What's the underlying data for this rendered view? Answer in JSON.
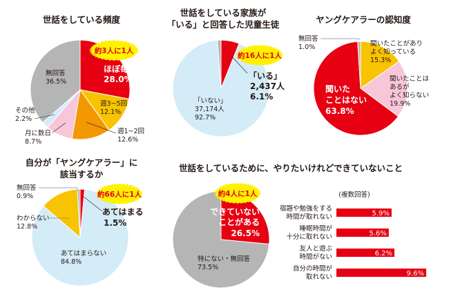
{
  "colors": {
    "red": "#e60012",
    "yellow": "#f8c300",
    "orange": "#f39800",
    "pink": "#f7c6d9",
    "lightblue": "#d4ebf8",
    "gray": "#b5b5b5",
    "callout": "#fff100"
  },
  "chart_data": [
    {
      "id": "frequency",
      "type": "pie",
      "title": "世話をしている頻度",
      "callout": "約3人に1人",
      "start": "top",
      "direction": "clockwise",
      "slices": [
        {
          "label": "ほぼ毎日",
          "value": 28.0,
          "display": "28.0%",
          "color": "red"
        },
        {
          "label": "週3~5回",
          "value": 12.1,
          "display": "12.1%",
          "color": "yellow"
        },
        {
          "label": "週1~2回",
          "value": 12.6,
          "display": "12.6%",
          "color": "orange"
        },
        {
          "label": "月に数日",
          "value": 8.7,
          "display": "8.7%",
          "color": "pink"
        },
        {
          "label": "その他",
          "value": 2.2,
          "display": "2.2%",
          "color": "lightblue"
        },
        {
          "label": "無回答",
          "value": 36.5,
          "display": "36.5%",
          "color": "gray"
        }
      ]
    },
    {
      "id": "has-family",
      "type": "pie",
      "title": [
        "世話をしている家族が",
        "「いる」と回答した児童生徒"
      ],
      "callout": "約16人に1人",
      "start": "top",
      "direction": "clockwise",
      "slices": [
        {
          "label": "「いる」",
          "count": "2,437人",
          "value": 6.1,
          "display": "6.1%",
          "color": "red"
        },
        {
          "label": "「いない」",
          "count": "37,174人",
          "value": 92.7,
          "display": "92.7%",
          "color": "lightblue"
        },
        {
          "label": "",
          "value": 1.2,
          "display": "",
          "color": "gray"
        }
      ]
    },
    {
      "id": "awareness",
      "type": "pie",
      "title": "ヤングケアラーの認知度",
      "start": "top",
      "direction": "clockwise",
      "slices": [
        {
          "label": "聞いたことがあり よく知っている",
          "lines": [
            "聞いたことがあり",
            "よく知っている"
          ],
          "value": 15.3,
          "display": "15.3%",
          "color": "yellow"
        },
        {
          "label": "聞いたことは あるが よく知らない",
          "lines": [
            "聞いたことは",
            "あるが",
            "よく知らない"
          ],
          "value": 19.9,
          "display": "19.9%",
          "color": "pink"
        },
        {
          "label": "聞いた ことはない",
          "lines": [
            "聞いた",
            "ことはない"
          ],
          "value": 63.8,
          "display": "63.8%",
          "color": "red"
        },
        {
          "label": "無回答",
          "lines": [
            "無回答"
          ],
          "value": 1.0,
          "display": "1.0%",
          "color": "gray"
        }
      ]
    },
    {
      "id": "self-identify",
      "type": "pie",
      "title": [
        "自分が「ヤングケアラー」に",
        "該当するか"
      ],
      "callout": "約66人に1人",
      "start": "top",
      "direction": "clockwise",
      "slices": [
        {
          "label": "あてはまる",
          "value": 1.5,
          "display": "1.5%",
          "color": "red"
        },
        {
          "label": "あてはまらない",
          "value": 84.8,
          "display": "84.8%",
          "color": "lightblue"
        },
        {
          "label": "わからない",
          "value": 12.8,
          "display": "12.8%",
          "color": "yellow"
        },
        {
          "label": "無回答",
          "value": 0.9,
          "display": "0.9%",
          "color": "gray"
        }
      ]
    },
    {
      "id": "cannot-do",
      "type": "pie",
      "title": "世話をしているために、やりたいけれどできていないこと",
      "callout": "約4人に1人",
      "start": "top",
      "direction": "clockwise",
      "slices": [
        {
          "label": "できていない ことがある",
          "lines": [
            "できていない",
            "ことがある"
          ],
          "value": 26.5,
          "display": "26.5%",
          "color": "red"
        },
        {
          "label": "特にない・無回答",
          "lines": [
            "特にない・無回答"
          ],
          "value": 73.5,
          "display": "73.5%",
          "color": "gray"
        }
      ]
    },
    {
      "id": "cannot-do-breakdown",
      "type": "bar",
      "orientation": "horizontal",
      "note": "(複数回答)",
      "unit": "%",
      "xlim": [
        0,
        10
      ],
      "categories": [
        [
          "宿題や勉強をする",
          "時間が取れない"
        ],
        [
          "睡眠時間が",
          "十分に取れない"
        ],
        [
          "友人と遊ぶ",
          "時間がない"
        ],
        [
          "自分の時間が",
          "取れない"
        ]
      ],
      "values": [
        5.9,
        5.6,
        6.2,
        9.6
      ],
      "displays": [
        "5.9%",
        "5.6%",
        "6.2%",
        "9.6%"
      ],
      "color": "red"
    }
  ]
}
